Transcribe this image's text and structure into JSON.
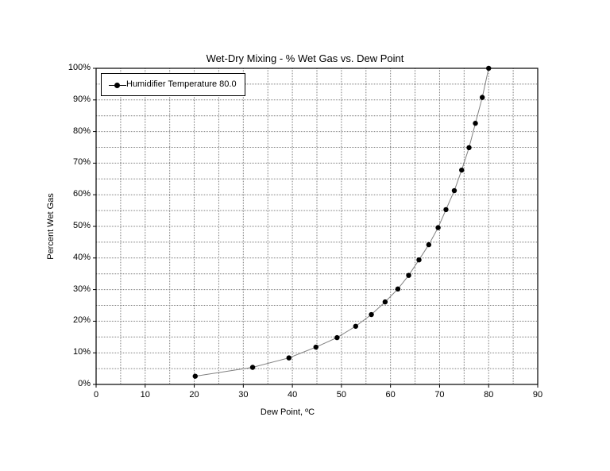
{
  "chart_data": {
    "type": "line",
    "title": "Wet-Dry Mixing - % Wet Gas vs. Dew Point",
    "xlabel": "Dew Point, ºC",
    "ylabel": "Percent Wet Gas",
    "xlim": [
      0,
      90
    ],
    "ylim": [
      0,
      100
    ],
    "x_ticks": [
      0,
      10,
      20,
      30,
      40,
      50,
      60,
      70,
      80,
      90
    ],
    "y_ticks": [
      "0%",
      "10%",
      "20%",
      "30%",
      "40%",
      "50%",
      "60%",
      "70%",
      "80%",
      "90%",
      "100%"
    ],
    "grid": true,
    "legend_position": "upper-left",
    "series": [
      {
        "name": "Humidifier Temperature 80.0",
        "marker": "circle",
        "x": [
          20.2,
          31.9,
          39.3,
          44.8,
          49.1,
          52.9,
          56.1,
          58.9,
          61.5,
          63.7,
          65.8,
          67.8,
          69.7,
          71.3,
          73.0,
          74.5,
          76.0,
          77.3,
          78.7,
          80.0
        ],
        "y": [
          2.6,
          5.4,
          8.4,
          11.8,
          14.8,
          18.4,
          22.1,
          26.1,
          30.2,
          34.5,
          39.4,
          44.2,
          49.6,
          55.3,
          61.3,
          67.8,
          74.9,
          82.6,
          90.8,
          100.0
        ]
      }
    ]
  },
  "colors": {
    "axis": "#000000",
    "grid": "#808080",
    "line": "#808080",
    "marker": "#000000"
  }
}
